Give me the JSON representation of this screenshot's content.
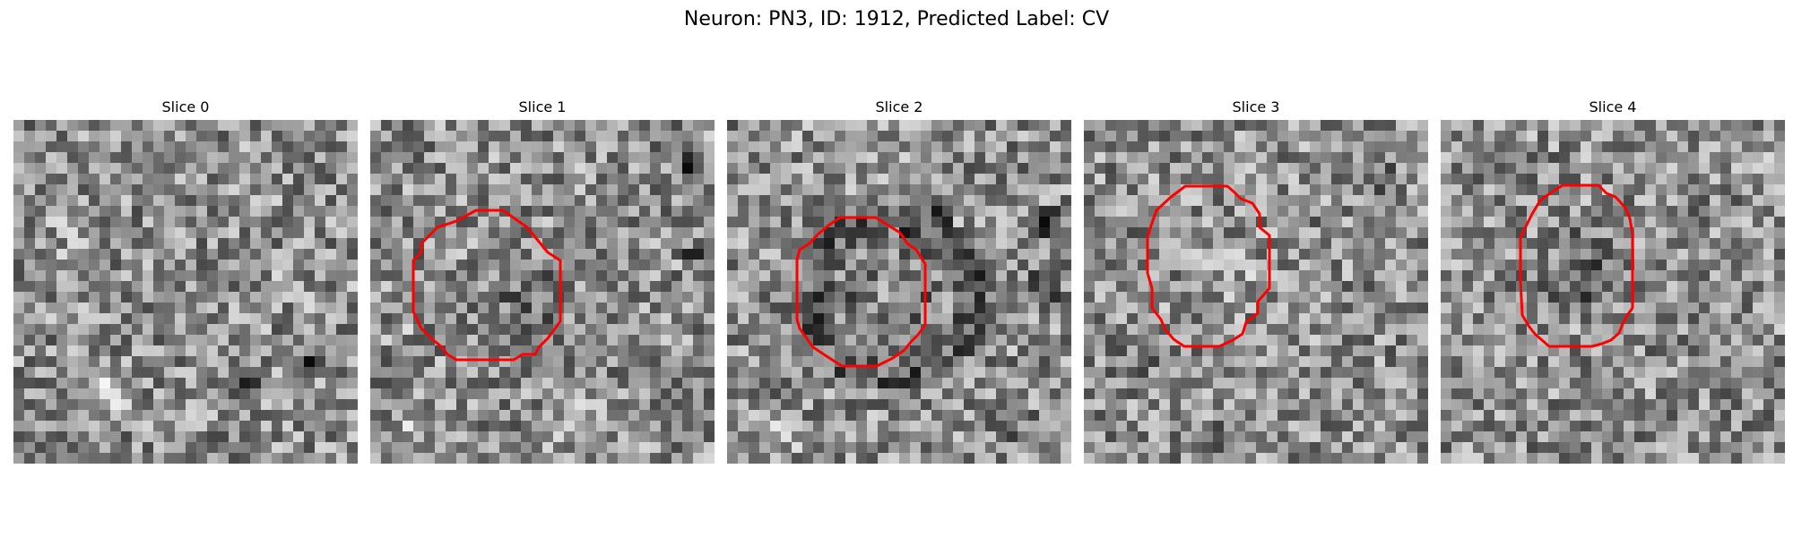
{
  "figure": {
    "title": "Neuron: PN3, ID: 1912, Predicted Label: CV"
  },
  "colors": {
    "contour": "#ff0000",
    "background": "#ffffff",
    "colormap": "grayscale"
  },
  "slices": [
    {
      "label": "Slice 0",
      "has_contour": false
    },
    {
      "label": "Slice 1",
      "has_contour": true
    },
    {
      "label": "Slice 2",
      "has_contour": true
    },
    {
      "label": "Slice 3",
      "has_contour": true
    },
    {
      "label": "Slice 4",
      "has_contour": true
    }
  ]
}
